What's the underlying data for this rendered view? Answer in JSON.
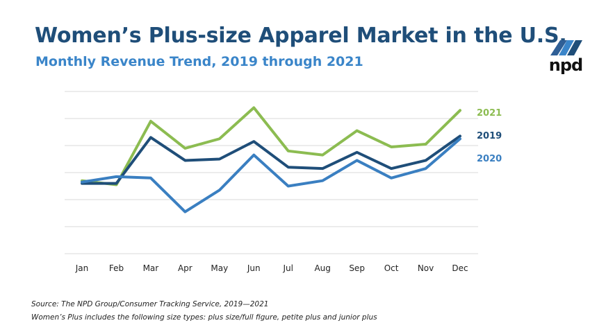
{
  "header": {
    "title": "Women’s Plus-size Apparel Market in the U.S.",
    "subtitle": "Monthly Revenue Trend, 2019 through 2021"
  },
  "logo": {
    "text": "npd",
    "icon": "npd-logo-icon"
  },
  "footnotes": {
    "source": "Source: The NPD Group/Consumer Tracking Service, 2019—2021",
    "definition": "Women’s Plus includes the following size types: plus size/full figure, petite plus and junior plus"
  },
  "chart_data": {
    "type": "line",
    "categories": [
      "Jan",
      "Feb",
      "Mar",
      "Apr",
      "May",
      "Jun",
      "Jul",
      "Aug",
      "Sep",
      "Oct",
      "Nov",
      "Dec"
    ],
    "ylim": [
      0,
      6
    ],
    "grid": true,
    "y_tick_labels": false,
    "legend": "right, labels at line ends",
    "series": [
      {
        "name": "2021",
        "color": "#8cbc51",
        "values": [
          2.7,
          2.55,
          4.9,
          3.9,
          4.25,
          5.4,
          3.8,
          3.65,
          4.55,
          3.95,
          4.05,
          5.3
        ]
      },
      {
        "name": "2019",
        "color": "#1f4e79",
        "values": [
          2.6,
          2.6,
          4.3,
          3.45,
          3.5,
          4.15,
          3.2,
          3.15,
          3.75,
          3.15,
          3.45,
          4.35
        ]
      },
      {
        "name": "2020",
        "color": "#3a7fc1",
        "values": [
          2.65,
          2.85,
          2.8,
          1.55,
          2.35,
          3.65,
          2.5,
          2.7,
          3.45,
          2.8,
          3.15,
          4.25
        ]
      }
    ]
  }
}
